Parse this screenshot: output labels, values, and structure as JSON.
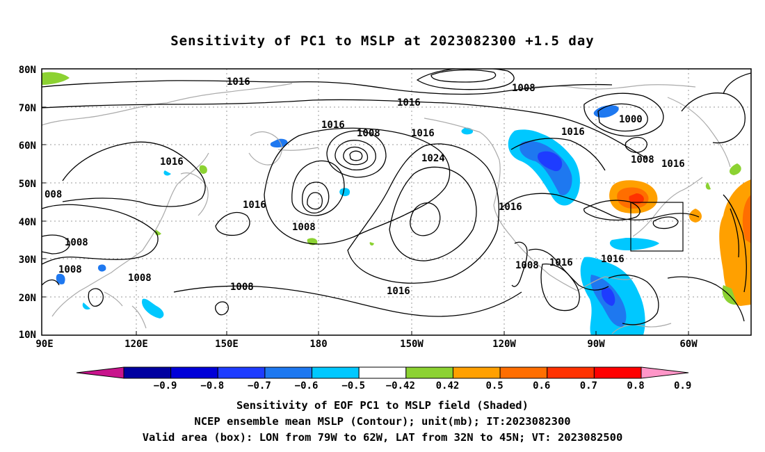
{
  "title": "Sensitivity of PC1 to MSLP at 2023082300 +1.5 day",
  "map": {
    "lon_labels": [
      "90E",
      "120E",
      "150E",
      "180",
      "150W",
      "120W",
      "90W",
      "60W"
    ],
    "lat_labels": [
      "80N",
      "70N",
      "60N",
      "50N",
      "40N",
      "30N",
      "20N",
      "10N"
    ],
    "coastline_color": "#aaaaaa",
    "contour_color": "#000000",
    "contour_labels": [
      "1016",
      "1016",
      "1016",
      "1008",
      "1016",
      "1024",
      "1016",
      "1008",
      "1000",
      "1008",
      "1016",
      "1016",
      "008",
      "1016",
      "1008",
      "1008",
      "1008",
      "1008",
      "1008",
      "1016",
      "1016",
      "1008",
      "1016"
    ],
    "valid_box": {
      "lon_from": "79W",
      "lon_to": "62W",
      "lat_from": "32N",
      "lat_to": "45N"
    }
  },
  "colorbar": {
    "labels": [
      "-0.9",
      "-0.8",
      "-0.7",
      "-0.6",
      "-0.5",
      "-0.42",
      "0.42",
      "0.5",
      "0.6",
      "0.7",
      "0.8",
      "0.9"
    ],
    "colors": [
      "#c8148c",
      "#0000a0",
      "#0000d8",
      "#1e3cff",
      "#1e78f0",
      "#00c8ff",
      "#ffffff",
      "#8cd232",
      "#ffa000",
      "#ff6e00",
      "#ff3200",
      "#ff0000",
      "#ff96c8"
    ]
  },
  "captions": {
    "line1": "Sensitivity of EOF PC1 to MSLP field (Shaded)",
    "line2": "NCEP ensemble mean MSLP (Contour); unit(mb); IT:2023082300",
    "line3": "Valid area (box): LON from 79W to 62W, LAT from 32N to 45N; VT: 2023082500"
  }
}
